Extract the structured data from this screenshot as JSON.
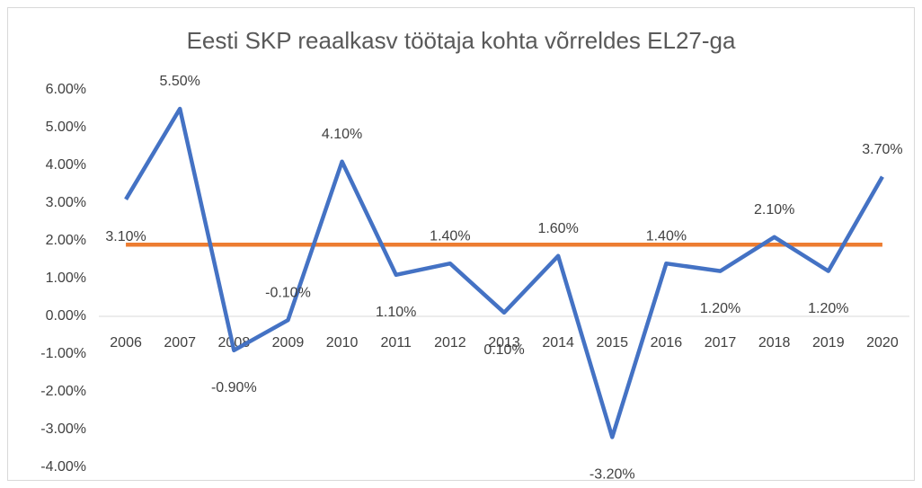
{
  "chart_data": {
    "type": "line",
    "title": "Eesti SKP reaalkasv töötaja kohta võrreldes EL27-ga",
    "categories": [
      "2006",
      "2007",
      "2008",
      "2009",
      "2010",
      "2011",
      "2012",
      "2013",
      "2014",
      "2015",
      "2016",
      "2017",
      "2018",
      "2019",
      "2020"
    ],
    "series": [
      {
        "color": "#4472c4",
        "values": [
          3.1,
          5.5,
          -0.9,
          -0.1,
          4.1,
          1.1,
          1.4,
          0.1,
          1.6,
          -3.2,
          1.4,
          1.2,
          2.1,
          1.2,
          3.7
        ],
        "value_labels": [
          "3.10%",
          "5.50%",
          "-0.90%",
          "-0.10%",
          "4.10%",
          "1.10%",
          "1.40%",
          "0.10%",
          "1.60%",
          "-3.20%",
          "1.40%",
          "1.20%",
          "2.10%",
          "1.20%",
          "3.70%"
        ]
      },
      {
        "color": "#ed7d31",
        "values": [
          1.9,
          1.9,
          1.9,
          1.9,
          1.9,
          1.9,
          1.9,
          1.9,
          1.9,
          1.9,
          1.9,
          1.9,
          1.9,
          1.9,
          1.9
        ]
      }
    ],
    "ylim": [
      -4,
      6
    ],
    "yticks": [
      {
        "value": -4,
        "label": "-4.00%"
      },
      {
        "value": -3,
        "label": "-3.00%"
      },
      {
        "value": -2,
        "label": "-2.00%"
      },
      {
        "value": -1,
        "label": "-1.00%"
      },
      {
        "value": 0,
        "label": "0.00%"
      },
      {
        "value": 1,
        "label": "1.00%"
      },
      {
        "value": 2,
        "label": "2.00%"
      },
      {
        "value": 3,
        "label": "3.00%"
      },
      {
        "value": 4,
        "label": "4.00%"
      },
      {
        "value": 5,
        "label": "5.00%"
      },
      {
        "value": 6,
        "label": "6.00%"
      }
    ]
  }
}
